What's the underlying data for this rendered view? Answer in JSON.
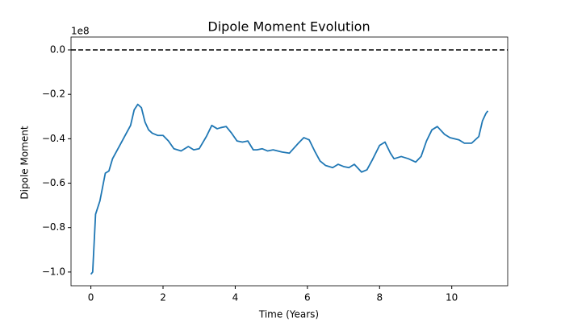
{
  "chart_data": {
    "type": "line",
    "title": "Dipole Moment Evolution",
    "xlabel": "Time (Years)",
    "ylabel": "Dipole Moment",
    "y_offset_label": "1e8",
    "x": [
      0,
      0.05,
      0.13,
      0.25,
      0.4,
      0.5,
      0.6,
      0.8,
      1.0,
      1.1,
      1.2,
      1.3,
      1.4,
      1.5,
      1.6,
      1.7,
      1.85,
      2.0,
      2.15,
      2.3,
      2.5,
      2.7,
      2.85,
      3.0,
      3.2,
      3.35,
      3.5,
      3.6,
      3.75,
      3.9,
      4.05,
      4.2,
      4.35,
      4.5,
      4.6,
      4.75,
      4.9,
      5.05,
      5.3,
      5.5,
      5.75,
      5.9,
      6.05,
      6.2,
      6.35,
      6.5,
      6.7,
      6.85,
      7.0,
      7.15,
      7.3,
      7.5,
      7.65,
      7.8,
      8.0,
      8.15,
      8.3,
      8.4,
      8.6,
      8.8,
      9.0,
      9.15,
      9.3,
      9.45,
      9.6,
      9.8,
      9.95,
      10.2,
      10.35,
      10.55,
      10.75,
      10.85,
      10.95,
      11.0
    ],
    "series": [
      {
        "color": "#1f77b4",
        "values": [
          -1.01,
          -1.0,
          -0.74,
          -0.68,
          -0.555,
          -0.545,
          -0.49,
          -0.43,
          -0.37,
          -0.34,
          -0.27,
          -0.245,
          -0.26,
          -0.325,
          -0.36,
          -0.375,
          -0.385,
          -0.385,
          -0.41,
          -0.445,
          -0.455,
          -0.435,
          -0.45,
          -0.445,
          -0.39,
          -0.34,
          -0.355,
          -0.35,
          -0.345,
          -0.375,
          -0.41,
          -0.415,
          -0.41,
          -0.45,
          -0.45,
          -0.445,
          -0.455,
          -0.45,
          -0.46,
          -0.465,
          -0.42,
          -0.395,
          -0.405,
          -0.455,
          -0.5,
          -0.52,
          -0.53,
          -0.515,
          -0.525,
          -0.53,
          -0.515,
          -0.55,
          -0.54,
          -0.495,
          -0.43,
          -0.415,
          -0.465,
          -0.49,
          -0.48,
          -0.49,
          -0.505,
          -0.48,
          -0.41,
          -0.36,
          -0.345,
          -0.38,
          -0.395,
          -0.405,
          -0.42,
          -0.42,
          -0.39,
          -0.32,
          -0.285,
          -0.275
        ]
      }
    ],
    "hline": {
      "value": 0,
      "color": "#000000",
      "dashed": true
    },
    "xlim": [
      -0.55,
      11.55
    ],
    "ylim": [
      -1.062,
      0.058
    ],
    "xticks": [
      0,
      2,
      4,
      6,
      8,
      10
    ],
    "yticks": [
      {
        "value": 0,
        "label": "0.0"
      },
      {
        "value": -0.2,
        "label": "−0.2"
      },
      {
        "value": -0.4,
        "label": "−0.4"
      },
      {
        "value": -0.6,
        "label": "−0.6"
      },
      {
        "value": -0.8,
        "label": "−0.8"
      },
      {
        "value": -1.0,
        "label": "−1.0"
      }
    ]
  }
}
